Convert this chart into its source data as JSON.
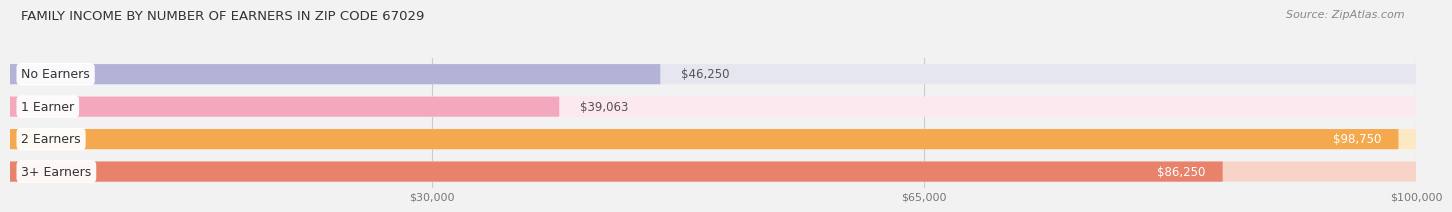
{
  "title": "FAMILY INCOME BY NUMBER OF EARNERS IN ZIP CODE 67029",
  "source": "Source: ZipAtlas.com",
  "categories": [
    "No Earners",
    "1 Earner",
    "2 Earners",
    "3+ Earners"
  ],
  "values": [
    46250,
    39063,
    98750,
    86250
  ],
  "bar_colors": [
    "#b3b3d7",
    "#f4a8be",
    "#f5a94e",
    "#e8826a"
  ],
  "bar_bg_colors": [
    "#e6e6f0",
    "#fce8ef",
    "#fde8c4",
    "#f8d4c8"
  ],
  "value_labels": [
    "$46,250",
    "$39,063",
    "$98,750",
    "$86,250"
  ],
  "value_inside": [
    false,
    false,
    true,
    true
  ],
  "x_min": 0,
  "x_max": 100000,
  "x_ticks": [
    30000,
    65000,
    100000
  ],
  "x_tick_labels": [
    "$30,000",
    "$65,000",
    "$100,000"
  ],
  "title_fontsize": 9.5,
  "source_fontsize": 8,
  "label_fontsize": 9,
  "value_fontsize": 8.5,
  "background_color": "#f2f2f2"
}
